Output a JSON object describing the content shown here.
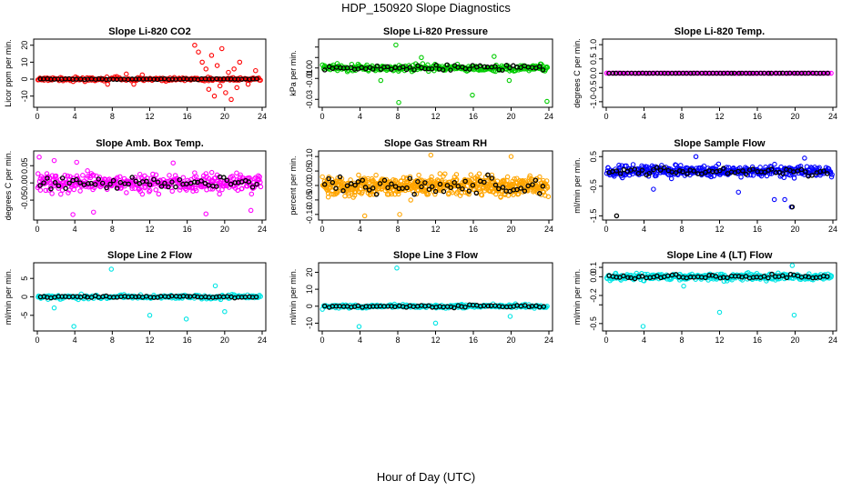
{
  "title": "HDP_150920  Slope Diagnostics",
  "x_caption": "Hour of Day (UTC)",
  "chart_data": [
    {
      "type": "scatter",
      "title": "Slope Li-820 CO2",
      "ylabel": "Licor ppm per min.",
      "color": "#ff0000",
      "xlim": [
        0,
        24
      ],
      "xticks": [
        0,
        4,
        8,
        12,
        16,
        20,
        24
      ],
      "ylim": [
        -15,
        22
      ],
      "yticks": [
        -10,
        0,
        10,
        20
      ],
      "ytick_labels": [
        "-10",
        "0",
        "10",
        "20"
      ],
      "n": 220,
      "seed": 11,
      "spread": 1.2,
      "outliers": [
        [
          16.8,
          20
        ],
        [
          17.2,
          16
        ],
        [
          17.6,
          10
        ],
        [
          18,
          6
        ],
        [
          18.3,
          -6
        ],
        [
          18.6,
          14
        ],
        [
          18.9,
          -10
        ],
        [
          19.2,
          8
        ],
        [
          19.5,
          -4
        ],
        [
          19.7,
          18
        ],
        [
          20.1,
          -8
        ],
        [
          20.4,
          4
        ],
        [
          20.7,
          -12
        ],
        [
          21,
          6
        ],
        [
          21.3,
          -5
        ],
        [
          21.6,
          10
        ],
        [
          22.5,
          -3
        ],
        [
          23.3,
          5
        ],
        [
          7.5,
          -3
        ],
        [
          9.5,
          3
        ],
        [
          10.3,
          -3
        ],
        [
          11.2,
          2.5
        ]
      ],
      "black_spread": 0.3
    },
    {
      "type": "scatter",
      "title": "Slope Li-820 Pressure",
      "ylabel": "kPa per min.",
      "color": "#00cc00",
      "xlim": [
        0,
        24
      ],
      "xticks": [
        0,
        4,
        8,
        12,
        16,
        20,
        24
      ],
      "ylim": [
        -0.035,
        0.025
      ],
      "yticks": [
        -0.03,
        -0.01,
        0.0,
        0.01,
        0.02
      ],
      "ytick_labels": [
        "-0.03",
        "-0.01",
        "0.00",
        "",
        ""
      ],
      "n": 300,
      "seed": 23,
      "spread": 0.0035,
      "outliers": [
        [
          7.8,
          0.022
        ],
        [
          8.1,
          -0.033
        ],
        [
          15.9,
          -0.026
        ],
        [
          23.8,
          -0.032
        ],
        [
          6.2,
          -0.012
        ],
        [
          19.8,
          -0.012
        ],
        [
          10.5,
          0.01
        ],
        [
          18.2,
          0.011
        ]
      ],
      "black_spread": 0.003
    },
    {
      "type": "scatter",
      "title": "Slope Li-820 Temp.",
      "ylabel": "degrees C per min.",
      "color": "#ff00ff",
      "xlim": [
        0,
        24
      ],
      "xticks": [
        0,
        4,
        8,
        12,
        16,
        20,
        24
      ],
      "ylim": [
        -1.1,
        1.1
      ],
      "yticks": [
        -1.0,
        -0.5,
        0.0,
        0.5,
        1.0
      ],
      "ytick_labels": [
        "-1.0",
        "-0.5",
        "0.0",
        "0.5",
        "1.0"
      ],
      "n": 140,
      "seed": 5,
      "spread": 0.004,
      "outliers": [],
      "black_spread": 0.003
    },
    {
      "type": "scatter",
      "title": "Slope Amb. Box Temp.",
      "ylabel": "degrees C per min.",
      "color": "#ff00ff",
      "xlim": [
        0,
        24
      ],
      "xticks": [
        0,
        4,
        8,
        12,
        16,
        20,
        24
      ],
      "ylim": [
        -0.1,
        0.085
      ],
      "yticks": [
        -0.05,
        0.0,
        0.05
      ],
      "ytick_labels": [
        "-0.05",
        "0.00",
        "0.05"
      ],
      "n": 380,
      "seed": 31,
      "spread": 0.028,
      "outliers": [
        [
          0.2,
          0.075
        ],
        [
          1.8,
          0.065
        ],
        [
          3.8,
          -0.092
        ],
        [
          4.2,
          0.06
        ],
        [
          6,
          -0.085
        ],
        [
          14.5,
          0.058
        ],
        [
          18,
          -0.09
        ],
        [
          22.8,
          -0.08
        ]
      ],
      "black_spread": 0.02
    },
    {
      "type": "scatter",
      "title": "Slope Gas Stream RH",
      "ylabel": "percent per min.",
      "color": "#ffa500",
      "xlim": [
        0,
        24
      ],
      "xticks": [
        0,
        4,
        8,
        12,
        16,
        20,
        24
      ],
      "ylim": [
        -0.11,
        0.11
      ],
      "yticks": [
        -0.1,
        -0.05,
        0.0,
        0.05,
        0.1
      ],
      "ytick_labels": [
        "-0.10",
        "-0.05",
        "0.00",
        "0.05",
        "0.10"
      ],
      "n": 600,
      "seed": 47,
      "spread": 0.035,
      "outliers": [
        [
          4.5,
          -0.105
        ],
        [
          11.5,
          0.105
        ],
        [
          20,
          0.1
        ],
        [
          8.2,
          -0.1
        ]
      ],
      "black_spread": 0.04
    },
    {
      "type": "scatter",
      "title": "Slope Sample Flow",
      "ylabel": "ml/min per min.",
      "color": "#0000ff",
      "xlim": [
        0,
        24
      ],
      "xticks": [
        0,
        4,
        8,
        12,
        16,
        20,
        24
      ],
      "ylim": [
        -1.55,
        0.6
      ],
      "yticks": [
        -1.5,
        -0.5,
        0.5
      ],
      "ytick_labels": [
        "-1.5",
        "-0.5",
        "0.5"
      ],
      "n": 380,
      "seed": 59,
      "spread": 0.2,
      "outliers": [
        [
          17.8,
          -0.95
        ],
        [
          18.9,
          -0.95
        ],
        [
          19.6,
          -1.2
        ],
        [
          9.5,
          0.5
        ],
        [
          21,
          0.45
        ],
        [
          5,
          -0.6
        ],
        [
          14,
          -0.7
        ]
      ],
      "black_spread": 0.15,
      "black_outliers": [
        [
          1.1,
          -1.5
        ],
        [
          19.7,
          -1.2
        ]
      ]
    },
    {
      "type": "scatter",
      "title": "Slope Line 2 Flow",
      "ylabel": "ml/min per min.",
      "color": "#00e5e5",
      "xlim": [
        0,
        24
      ],
      "xticks": [
        0,
        4,
        8,
        12,
        16,
        20,
        24
      ],
      "ylim": [
        -8.5,
        8.5
      ],
      "yticks": [
        -5,
        0,
        5
      ],
      "ytick_labels": [
        "-5",
        "0",
        "5"
      ],
      "n": 220,
      "seed": 67,
      "spread": 0.6,
      "outliers": [
        [
          7.9,
          7.5
        ],
        [
          3.9,
          -8
        ],
        [
          15.9,
          -6
        ],
        [
          12,
          -5
        ],
        [
          20,
          -4
        ],
        [
          19,
          3
        ],
        [
          1.8,
          -3
        ]
      ],
      "black_spread": 0.3
    },
    {
      "type": "scatter",
      "title": "Slope Line 3 Flow",
      "ylabel": "ml/min per min.",
      "color": "#00e5e5",
      "xlim": [
        0,
        24
      ],
      "xticks": [
        0,
        4,
        8,
        12,
        16,
        20,
        24
      ],
      "ylim": [
        -13,
        24
      ],
      "yticks": [
        -10,
        0,
        10,
        20
      ],
      "ytick_labels": [
        "-10",
        "0",
        "10",
        "20"
      ],
      "n": 240,
      "seed": 71,
      "spread": 1.2,
      "outliers": [
        [
          7.9,
          22.5
        ],
        [
          3.9,
          -12
        ],
        [
          12,
          -10
        ],
        [
          19.9,
          -6
        ]
      ],
      "black_spread": 1
    },
    {
      "type": "scatter",
      "title": "Slope Line 4 (LT) Flow",
      "ylabel": "ml/min per min.",
      "color": "#00e5e5",
      "xlim": [
        0,
        24
      ],
      "xticks": [
        0,
        4,
        8,
        12,
        16,
        20,
        24
      ],
      "ylim": [
        -0.55,
        0.12
      ],
      "yticks": [
        -0.5,
        -0.3,
        -0.2,
        0.0,
        0.1
      ],
      "ytick_labels": [
        "-0.5",
        "",
        "-0.2",
        "0.0",
        "0.1"
      ],
      "n": 320,
      "seed": 83,
      "spread": 0.04,
      "outliers": [
        [
          3.9,
          -0.53
        ],
        [
          12,
          -0.38
        ],
        [
          19.9,
          -0.41
        ],
        [
          19.7,
          0.12
        ],
        [
          8.2,
          -0.1
        ]
      ],
      "black_spread": 0.025
    }
  ]
}
